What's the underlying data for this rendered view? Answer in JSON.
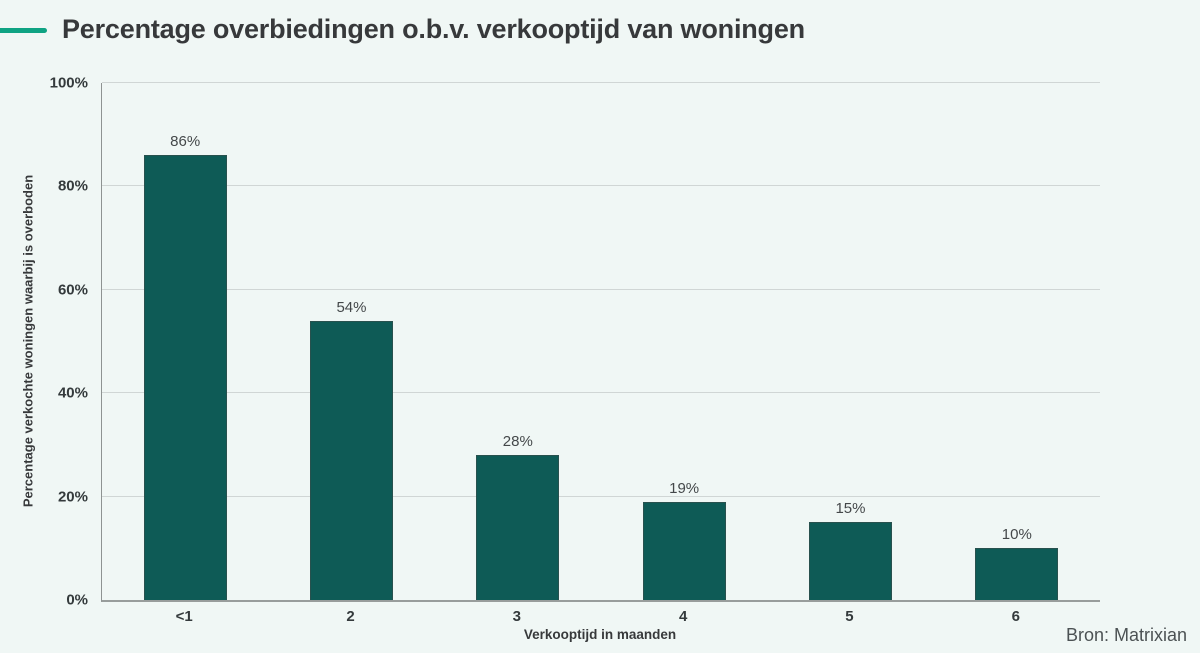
{
  "title": "Percentage overbiedingen o.b.v. verkooptijd van woningen",
  "source": "Bron: Matrixian",
  "colors": {
    "accent": "#0fa383",
    "bar": "#0e5b56",
    "background": "#f0f7f5"
  },
  "chart_data": {
    "type": "bar",
    "title": "Percentage overbiedingen o.b.v. verkooptijd van woningen",
    "categories": [
      "<1",
      "2",
      "3",
      "4",
      "5",
      "6"
    ],
    "values": [
      86,
      54,
      28,
      19,
      15,
      10
    ],
    "value_labels": [
      "86%",
      "54%",
      "28%",
      "19%",
      "15%",
      "10%"
    ],
    "xlabel": "Verkooptijd in maanden",
    "ylabel": "Percentage verkochte woningen waarbij is overboden",
    "ylim": [
      0,
      100
    ],
    "yticks": [
      0,
      20,
      40,
      60,
      80,
      100
    ],
    "ytick_labels": [
      "0%",
      "20%",
      "40%",
      "60%",
      "80%",
      "100%"
    ],
    "grid": true,
    "legend": false,
    "source": "Bron: Matrixian"
  }
}
